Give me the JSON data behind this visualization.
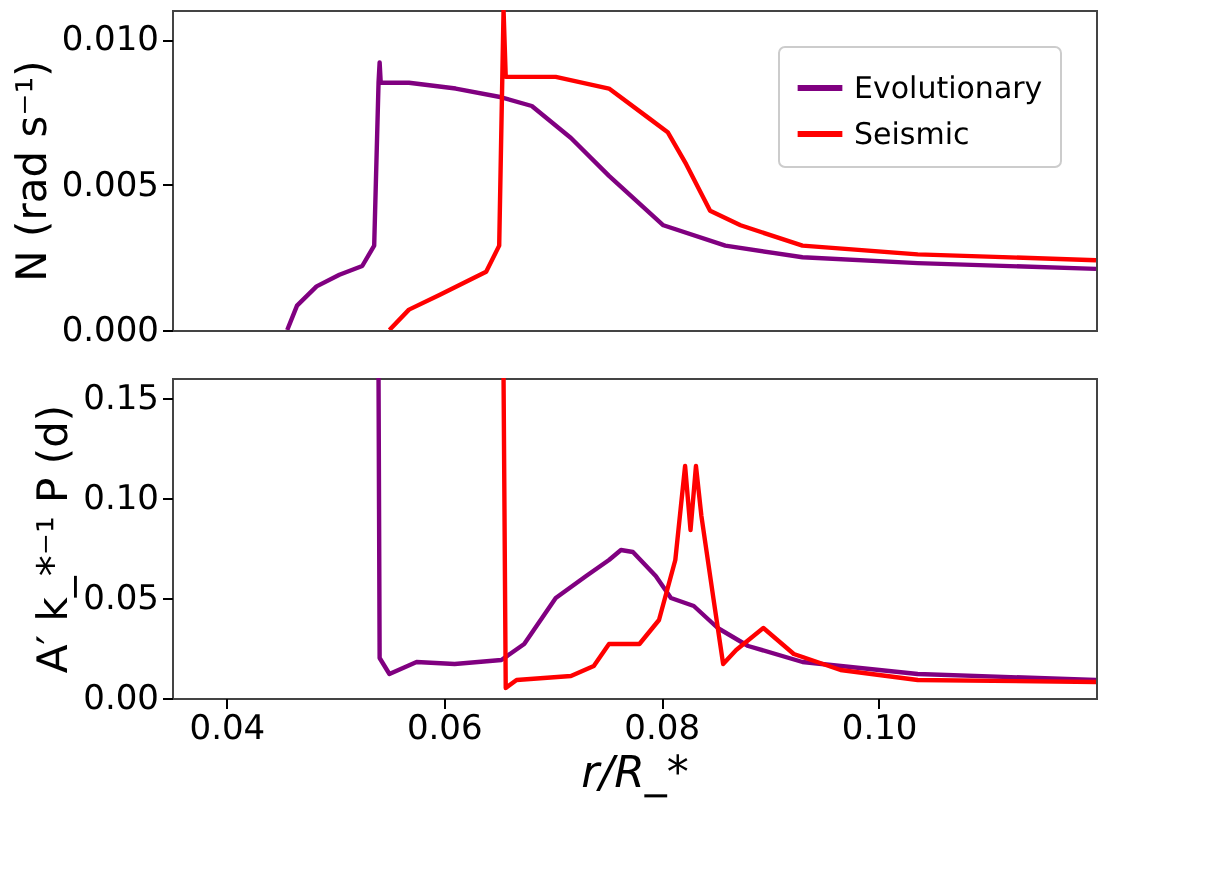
{
  "chart_data": [
    {
      "type": "line",
      "ylabel": "N (rad s⁻¹)",
      "xlim": [
        0.035,
        0.12
      ],
      "xticks": [
        0.04,
        0.06,
        0.08,
        0.1
      ],
      "ylim": [
        0,
        0.011
      ],
      "yticks": [
        {
          "value": 0,
          "label": "0.000"
        },
        {
          "value": 0.005,
          "label": "0.005"
        },
        {
          "value": 0.01,
          "label": "0.010"
        }
      ],
      "tick_labels": "y",
      "legend": "top right",
      "grid": false,
      "series": [
        {
          "name": "Evolutionary",
          "color": "#800080",
          "x": [
            0.0456,
            0.0465,
            0.0483,
            0.0504,
            0.0525,
            0.0536,
            0.054,
            0.0541,
            0.0542,
            0.0568,
            0.0611,
            0.0653,
            0.0681,
            0.0717,
            0.0752,
            0.0802,
            0.0859,
            0.093,
            0.1036,
            0.12
          ],
          "values": [
            0,
            0.00084,
            0.0015,
            0.0019,
            0.0022,
            0.0029,
            0.0085,
            0.0092,
            0.0085,
            0.0085,
            0.0083,
            0.008,
            0.0077,
            0.0066,
            0.0053,
            0.0036,
            0.0029,
            0.0025,
            0.0023,
            0.0021
          ]
        },
        {
          "name": "Seismic",
          "color": "#ff0000",
          "x": [
            0.055,
            0.0568,
            0.0596,
            0.0639,
            0.0651,
            0.0655,
            0.0657,
            0.0703,
            0.0752,
            0.0788,
            0.0806,
            0.0823,
            0.0845,
            0.0873,
            0.093,
            0.1036,
            0.12
          ],
          "values": [
            0,
            0.0007,
            0.0012,
            0.002,
            0.0029,
            0.011,
            0.0087,
            0.0087,
            0.0083,
            0.0073,
            0.0068,
            0.0057,
            0.0041,
            0.0036,
            0.0029,
            0.0026,
            0.0024
          ]
        }
      ]
    },
    {
      "type": "line",
      "xlabel": "r/R_*",
      "ylabel": "A′ k_*⁻¹ P (d)",
      "xlim": [
        0.035,
        0.12
      ],
      "xticks": [
        0.04,
        0.06,
        0.08,
        {
          "value": 0.1,
          "label": "0.10"
        }
      ],
      "ylim": [
        0,
        0.16
      ],
      "yticks": [
        {
          "value": 0,
          "label": "0.00"
        },
        0.05,
        {
          "value": 0.1,
          "label": "0.10"
        },
        0.15
      ],
      "legend": "top right",
      "grid": false,
      "series": [
        {
          "name": "Evolutionary",
          "color": "#800080",
          "x": [
            0.054,
            0.0541,
            0.055,
            0.0575,
            0.061,
            0.0653,
            0.0674,
            0.0703,
            0.0731,
            0.0752,
            0.0763,
            0.0774,
            0.0795,
            0.0809,
            0.083,
            0.0852,
            0.088,
            0.093,
            0.1036,
            0.12
          ],
          "values": [
            0.16,
            0.02,
            0.012,
            0.018,
            0.017,
            0.019,
            0.027,
            0.05,
            0.061,
            0.069,
            0.074,
            0.073,
            0.061,
            0.05,
            0.046,
            0.035,
            0.026,
            0.018,
            0.012,
            0.009
          ]
        },
        {
          "name": "Seismic",
          "color": "#ff0000",
          "x": [
            0.0655,
            0.0657,
            0.0667,
            0.0717,
            0.0738,
            0.0752,
            0.078,
            0.0798,
            0.0813,
            0.0822,
            0.0827,
            0.0832,
            0.0837,
            0.0848,
            0.0857,
            0.0869,
            0.0894,
            0.0922,
            0.0965,
            0.1036,
            0.12
          ],
          "values": [
            0.16,
            0.005,
            0.009,
            0.011,
            0.016,
            0.027,
            0.027,
            0.039,
            0.069,
            0.116,
            0.084,
            0.116,
            0.091,
            0.05,
            0.017,
            0.024,
            0.035,
            0.022,
            0.014,
            0.009,
            0.008
          ]
        }
      ]
    }
  ]
}
